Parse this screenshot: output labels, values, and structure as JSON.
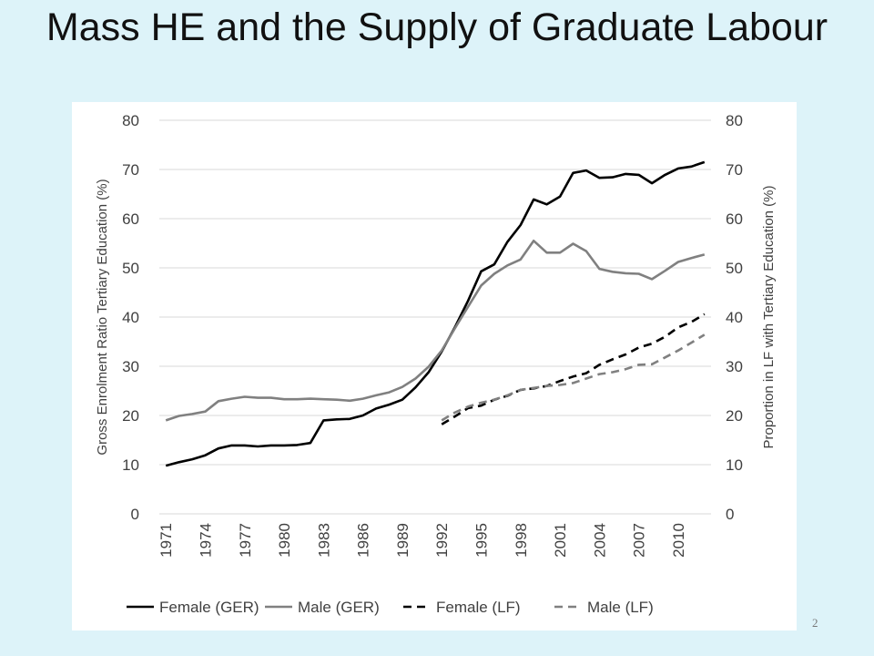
{
  "slide": {
    "title": "Mass HE and the Supply of Graduate Labour",
    "page_number": "2"
  },
  "chart_data": {
    "type": "line",
    "x": [
      1971,
      1972,
      1973,
      1974,
      1975,
      1976,
      1977,
      1978,
      1979,
      1980,
      1981,
      1982,
      1983,
      1984,
      1985,
      1986,
      1987,
      1988,
      1989,
      1990,
      1991,
      1992,
      1993,
      1994,
      1995,
      1996,
      1997,
      1998,
      1999,
      2000,
      2001,
      2002,
      2003,
      2004,
      2005,
      2006,
      2007,
      2008,
      2009,
      2010,
      2011,
      2012
    ],
    "x_tick_labels": [
      "1971",
      "1974",
      "1977",
      "1980",
      "1983",
      "1986",
      "1989",
      "1992",
      "1995",
      "1998",
      "2001",
      "2004",
      "2007",
      "2010"
    ],
    "y_tick_labels": [
      "0",
      "10",
      "20",
      "30",
      "40",
      "50",
      "60",
      "70",
      "80"
    ],
    "ylim": [
      0,
      80
    ],
    "y2lim": [
      0,
      80
    ],
    "ylabel": "Gross Enrolment Ratio Tertiary Education (%)",
    "y2label": "Proportion in LF with Tertiary Education (%)",
    "grid": true,
    "legend_position": "bottom",
    "series": [
      {
        "name": "Female (GER)",
        "axis": "left",
        "color": "#000000",
        "dash": "solid",
        "values": [
          9.8,
          10.5,
          11.1,
          11.9,
          13.3,
          13.9,
          13.9,
          13.7,
          13.9,
          13.9,
          14.0,
          14.4,
          19.0,
          19.2,
          19.3,
          20.0,
          21.4,
          22.2,
          23.2,
          25.7,
          28.8,
          33.0,
          37.9,
          43.3,
          49.3,
          50.7,
          55.3,
          58.7,
          63.9,
          62.9,
          64.5,
          69.3,
          69.8,
          68.3,
          68.4,
          69.1,
          68.9,
          67.2,
          68.9,
          70.2,
          70.6,
          71.5
        ]
      },
      {
        "name": "Male (GER)",
        "axis": "left",
        "color": "#808080",
        "dash": "solid",
        "values": [
          19.0,
          19.9,
          20.3,
          20.8,
          22.9,
          23.4,
          23.8,
          23.6,
          23.6,
          23.3,
          23.3,
          23.4,
          23.3,
          23.2,
          23.0,
          23.4,
          24.1,
          24.7,
          25.8,
          27.5,
          29.9,
          33.2,
          37.7,
          42.1,
          46.4,
          48.8,
          50.5,
          51.7,
          55.5,
          53.1,
          53.1,
          54.9,
          53.4,
          49.8,
          49.2,
          48.9,
          48.8,
          47.7,
          49.4,
          51.2,
          52.0,
          52.7
        ]
      },
      {
        "name": "Female (LF)",
        "axis": "right",
        "color": "#000000",
        "dash": "dashed",
        "values": [
          null,
          null,
          null,
          null,
          null,
          null,
          null,
          null,
          null,
          null,
          null,
          null,
          null,
          null,
          null,
          null,
          null,
          null,
          null,
          null,
          null,
          18.2,
          19.8,
          21.5,
          22.0,
          23.2,
          24.0,
          25.2,
          25.5,
          26.0,
          27.0,
          27.9,
          28.6,
          30.3,
          31.4,
          32.4,
          33.8,
          34.6,
          36.0,
          37.9,
          39.0,
          40.6
        ]
      },
      {
        "name": "Male (LF)",
        "axis": "right",
        "color": "#808080",
        "dash": "dashed",
        "values": [
          null,
          null,
          null,
          null,
          null,
          null,
          null,
          null,
          null,
          null,
          null,
          null,
          null,
          null,
          null,
          null,
          null,
          null,
          null,
          null,
          null,
          19.0,
          20.6,
          21.8,
          22.6,
          23.2,
          24.1,
          25.2,
          25.6,
          26.0,
          26.2,
          26.6,
          27.5,
          28.4,
          28.8,
          29.4,
          30.3,
          30.4,
          31.8,
          33.2,
          34.8,
          36.4
        ]
      }
    ]
  }
}
